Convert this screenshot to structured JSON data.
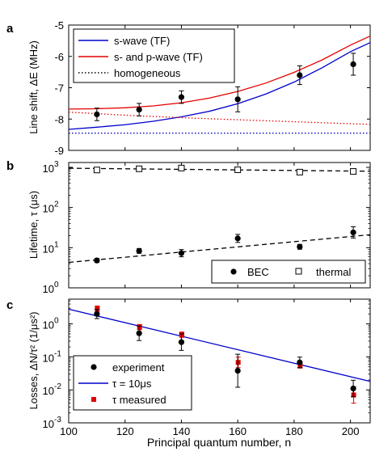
{
  "panel_labels": [
    "a",
    "b",
    "c"
  ],
  "xlabel": "Principal quantum number, n",
  "x_ticks": [
    100,
    120,
    140,
    160,
    180,
    200
  ],
  "xlim": [
    100,
    207
  ],
  "colors": {
    "blue": "#0000cc",
    "red": "#e60000",
    "black": "#000000",
    "red_marker": "#dd0000"
  },
  "chart_data": [
    {
      "panel": "a",
      "type": "line",
      "ylabel": "Line shift, ΔE (MHz)",
      "ylim": [
        -9,
        -5
      ],
      "y_ticks": [
        -9,
        -8,
        -7,
        -6,
        -5
      ],
      "y_scale": "linear",
      "legend_position": "top-left",
      "legend": [
        {
          "label": "s-wave (TF)",
          "style": "solid",
          "color": "#0000cc"
        },
        {
          "label": "s- and p-wave (TF)",
          "style": "solid",
          "color": "#e60000"
        },
        {
          "label": "homogeneous",
          "style": "dotted",
          "color": "#000000"
        }
      ],
      "series": [
        {
          "name": "s-wave (TF)",
          "style": "solid",
          "color": "#0000cc",
          "x": [
            100,
            110,
            120,
            130,
            140,
            150,
            160,
            170,
            180,
            190,
            200,
            207
          ],
          "y": [
            -8.33,
            -8.26,
            -8.18,
            -8.07,
            -7.93,
            -7.75,
            -7.51,
            -7.2,
            -6.82,
            -6.36,
            -5.85,
            -5.56
          ]
        },
        {
          "name": "s- and p-wave (TF)",
          "style": "solid",
          "color": "#e60000",
          "x": [
            100,
            110,
            120,
            130,
            140,
            150,
            160,
            170,
            180,
            190,
            200,
            207
          ],
          "y": [
            -7.68,
            -7.67,
            -7.64,
            -7.58,
            -7.48,
            -7.33,
            -7.12,
            -6.85,
            -6.51,
            -6.11,
            -5.64,
            -5.35
          ]
        },
        {
          "name": "homogeneous red",
          "style": "dotted",
          "color": "#e60000",
          "x": [
            100,
            125,
            150,
            175,
            207
          ],
          "y": [
            -7.78,
            -7.9,
            -7.99,
            -8.07,
            -8.17
          ]
        },
        {
          "name": "homogeneous blue",
          "style": "dotted",
          "color": "#0000cc",
          "x": [
            100,
            207
          ],
          "y": [
            -8.45,
            -8.45
          ]
        }
      ],
      "points": {
        "x": [
          110,
          125,
          140,
          160,
          182,
          201
        ],
        "y": [
          -7.85,
          -7.7,
          -7.3,
          -7.37,
          -6.6,
          -6.25
        ],
        "err": [
          0.2,
          0.2,
          0.2,
          0.4,
          0.3,
          0.35
        ]
      }
    },
    {
      "panel": "b",
      "type": "scatter",
      "ylabel": "Lifetime, τ (μs)",
      "y_scale": "log",
      "ylim_log": [
        0,
        3.12
      ],
      "y_ticks": [
        {
          "base": "10",
          "exp": "0",
          "log": 0
        },
        {
          "base": "10",
          "exp": "1",
          "log": 1
        },
        {
          "base": "10",
          "exp": "2",
          "log": 2
        },
        {
          "base": "10",
          "exp": "3",
          "log": 3
        }
      ],
      "legend_position": "bottom-right",
      "legend": [
        {
          "label": "BEC",
          "marker": "filled-circle"
        },
        {
          "label": "thermal",
          "marker": "open-square"
        }
      ],
      "thermal": {
        "x": [
          110,
          125,
          140,
          160,
          182,
          201
        ],
        "y": [
          860,
          920,
          960,
          870,
          760,
          790
        ]
      },
      "thermal_fit": {
        "x": [
          100,
          207
        ],
        "y": [
          950,
          800
        ]
      },
      "bec": {
        "x": [
          110,
          125,
          140,
          160,
          182,
          201
        ],
        "y": [
          4.8,
          8.3,
          7.3,
          17,
          10.5,
          24
        ],
        "err_log": [
          0.05,
          0.06,
          0.09,
          0.1,
          0.06,
          0.14
        ]
      },
      "bec_fit": {
        "x": [
          100,
          207
        ],
        "y": [
          4.3,
          21
        ]
      }
    },
    {
      "panel": "c",
      "type": "scatter",
      "ylabel": "Losses, ΔN/τ² (1/μs²)",
      "y_scale": "log",
      "ylim_log": [
        -3,
        0.75
      ],
      "y_ticks": [
        {
          "base": "10",
          "exp": "-3",
          "log": -3
        },
        {
          "base": "10",
          "exp": "-2",
          "log": -2
        },
        {
          "base": "10",
          "exp": "-1",
          "log": -1
        },
        {
          "base": "10",
          "exp": "0",
          "log": 0
        }
      ],
      "legend_position": "bottom-left",
      "legend": [
        {
          "label": "experiment",
          "marker": "filled-circle",
          "color": "#000000"
        },
        {
          "label": "τ  = 10μs",
          "marker": "line",
          "color": "#0000cc"
        },
        {
          "label": "τ measured",
          "marker": "filled-square",
          "color": "#dd0000"
        }
      ],
      "experiment": {
        "x": [
          110,
          125,
          140,
          160,
          182,
          201
        ],
        "y": [
          2.0,
          0.52,
          0.28,
          0.038,
          0.068,
          0.011
        ],
        "err_log": [
          0.14,
          0.22,
          0.25,
          0.5,
          0.16,
          0.25
        ]
      },
      "tau_measured": {
        "x": [
          110,
          125,
          140,
          160,
          182,
          201
        ],
        "y": [
          2.9,
          0.8,
          0.47,
          0.068,
          0.055,
          0.007
        ],
        "err_log": [
          0.08,
          0.08,
          0.08,
          0.16,
          0.08,
          0.25
        ]
      },
      "fit_tau_10us": {
        "x": [
          100,
          207
        ],
        "y": [
          2.8,
          0.018
        ]
      }
    }
  ]
}
